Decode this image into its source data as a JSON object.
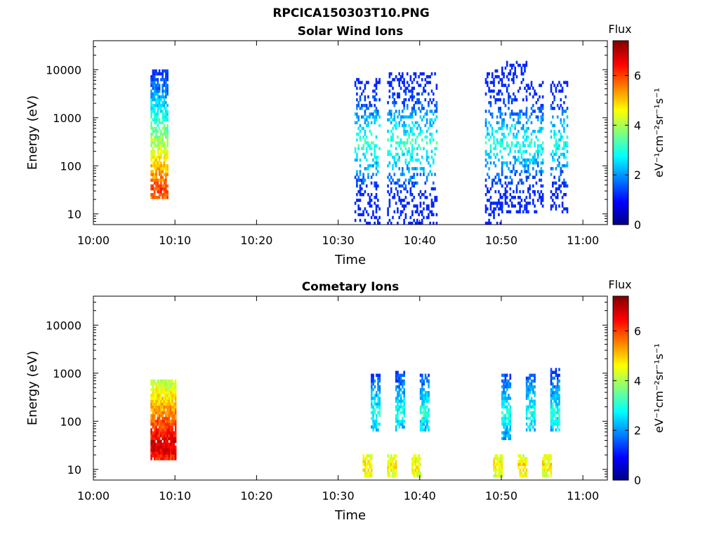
{
  "figure_title": "RPCICA150303T10.PNG",
  "chart_data": [
    {
      "type": "heatmap",
      "title": "Solar Wind Ions",
      "xlabel": "Time",
      "ylabel": "Energy (eV)",
      "x_ticks": [
        "10:00",
        "10:10",
        "10:20",
        "10:30",
        "10:40",
        "10:50",
        "11:00"
      ],
      "xlim": [
        "10:00",
        "11:03"
      ],
      "y_scale": "log",
      "y_ticks": [
        "10",
        "100",
        "1000",
        "10000"
      ],
      "ylim": [
        6,
        40000
      ],
      "colorbar": {
        "title": "Flux",
        "label": "eV⁻¹cm⁻²sr⁻¹s⁻¹",
        "ticks": [
          "0",
          "2",
          "4",
          "6"
        ],
        "range": [
          0,
          7.4
        ],
        "colormap": "jet"
      },
      "bursts": [
        {
          "start": "10:07",
          "end": "10:09",
          "emin": 20,
          "emax": 10000,
          "peak": 6.0,
          "peak_energy": 32,
          "density": 0.75
        },
        {
          "start": "10:32",
          "end": "10:35",
          "emin": 6,
          "emax": 7000,
          "peak": 3.2,
          "peak_energy": 300,
          "density": 0.3
        },
        {
          "start": "10:36",
          "end": "10:39",
          "emin": 6,
          "emax": 9000,
          "peak": 3.2,
          "peak_energy": 300,
          "density": 0.3
        },
        {
          "start": "10:39",
          "end": "10:42",
          "emin": 6,
          "emax": 9000,
          "peak": 3.2,
          "peak_energy": 300,
          "density": 0.3
        },
        {
          "start": "10:48",
          "end": "10:50",
          "emin": 6,
          "emax": 10000,
          "peak": 3.0,
          "peak_energy": 300,
          "density": 0.3
        },
        {
          "start": "10:50",
          "end": "10:53",
          "emin": 10,
          "emax": 16000,
          "peak": 3.0,
          "peak_energy": 300,
          "density": 0.3
        },
        {
          "start": "10:53",
          "end": "10:55",
          "emin": 10,
          "emax": 6000,
          "peak": 3.0,
          "peak_energy": 300,
          "density": 0.3
        },
        {
          "start": "10:56",
          "end": "10:58",
          "emin": 10,
          "emax": 6000,
          "peak": 3.0,
          "peak_energy": 300,
          "density": 0.3
        }
      ]
    },
    {
      "type": "heatmap",
      "title": "Cometary Ions",
      "xlabel": "Time",
      "ylabel": "Energy (eV)",
      "x_ticks": [
        "10:00",
        "10:10",
        "10:20",
        "10:30",
        "10:40",
        "10:50",
        "11:00"
      ],
      "xlim": [
        "10:00",
        "11:03"
      ],
      "y_scale": "log",
      "y_ticks": [
        "10",
        "100",
        "1000",
        "10000"
      ],
      "ylim": [
        6,
        40000
      ],
      "colorbar": {
        "title": "Flux",
        "label": "eV⁻¹cm⁻²sr⁻¹s⁻¹",
        "ticks": [
          "0",
          "2",
          "4",
          "6"
        ],
        "range": [
          0,
          7.4
        ],
        "colormap": "jet"
      },
      "bursts": [
        {
          "start": "10:07",
          "end": "10:10",
          "emin": 15,
          "emax": 700,
          "peak": 6.8,
          "peak_energy": 32,
          "density": 0.95
        },
        {
          "start": "10:34",
          "end": "10:35",
          "emin": 60,
          "emax": 1000,
          "peak": 3.0,
          "peak_energy": 150,
          "density": 0.7
        },
        {
          "start": "10:37",
          "end": "10:38",
          "emin": 60,
          "emax": 1100,
          "peak": 3.0,
          "peak_energy": 150,
          "density": 0.7
        },
        {
          "start": "10:40",
          "end": "10:41",
          "emin": 60,
          "emax": 1000,
          "peak": 3.0,
          "peak_energy": 150,
          "density": 0.7
        },
        {
          "start": "10:50",
          "end": "10:51",
          "emin": 40,
          "emax": 1000,
          "peak": 3.0,
          "peak_energy": 150,
          "density": 0.7
        },
        {
          "start": "10:53",
          "end": "10:54",
          "emin": 60,
          "emax": 1000,
          "peak": 3.0,
          "peak_energy": 150,
          "density": 0.7
        },
        {
          "start": "10:56",
          "end": "10:57",
          "emin": 60,
          "emax": 1300,
          "peak": 3.0,
          "peak_energy": 150,
          "density": 0.7
        },
        {
          "start": "10:33",
          "end": "10:34",
          "emin": 7,
          "emax": 22,
          "peak": 4.8,
          "peak_energy": 12,
          "density": 0.85
        },
        {
          "start": "10:36",
          "end": "10:37",
          "emin": 7,
          "emax": 22,
          "peak": 4.8,
          "peak_energy": 12,
          "density": 0.85
        },
        {
          "start": "10:39",
          "end": "10:40",
          "emin": 7,
          "emax": 22,
          "peak": 4.8,
          "peak_energy": 12,
          "density": 0.85
        },
        {
          "start": "10:49",
          "end": "10:50",
          "emin": 7,
          "emax": 22,
          "peak": 4.8,
          "peak_energy": 12,
          "density": 0.85
        },
        {
          "start": "10:52",
          "end": "10:53",
          "emin": 7,
          "emax": 22,
          "peak": 4.8,
          "peak_energy": 12,
          "density": 0.85
        },
        {
          "start": "10:55",
          "end": "10:56",
          "emin": 7,
          "emax": 22,
          "peak": 4.8,
          "peak_energy": 12,
          "density": 0.85
        }
      ]
    }
  ]
}
